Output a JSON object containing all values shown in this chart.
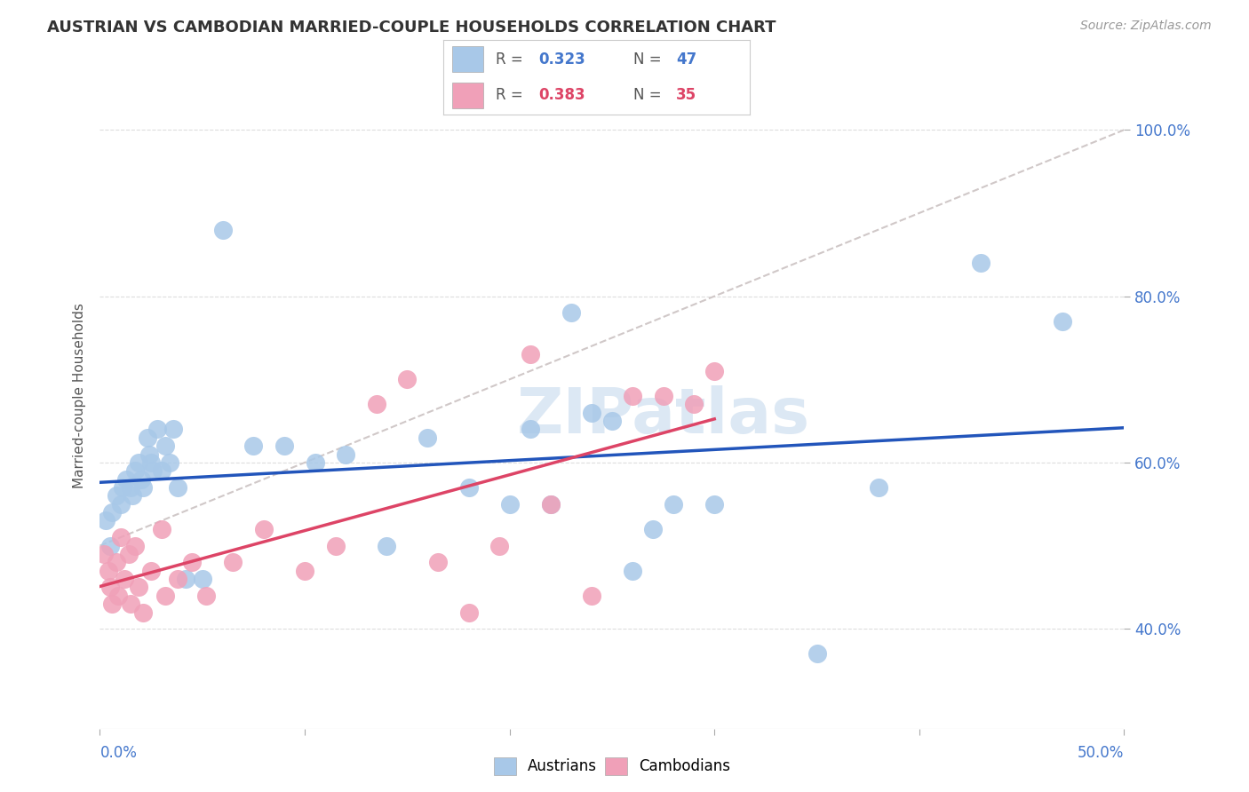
{
  "title": "AUSTRIAN VS CAMBODIAN MARRIED-COUPLE HOUSEHOLDS CORRELATION CHART",
  "source": "Source: ZipAtlas.com",
  "ylabel": "Married-couple Households",
  "legend_blue_r": "0.323",
  "legend_blue_n": "47",
  "legend_pink_r": "0.383",
  "legend_pink_n": "35",
  "legend_label_blue": "Austrians",
  "legend_label_pink": "Cambodians",
  "blue_dot_color": "#a8c8e8",
  "pink_dot_color": "#f0a0b8",
  "trend_blue_color": "#2255bb",
  "trend_pink_color": "#dd4466",
  "ref_line_color": "#d0c8c8",
  "watermark": "ZIPatlas",
  "watermark_color": "#dce8f4",
  "xlim": [
    0,
    50
  ],
  "ylim": [
    28,
    108
  ],
  "yticks": [
    40,
    60,
    80,
    100
  ],
  "xtick_positions": [
    0,
    10,
    20,
    30,
    40,
    50
  ],
  "aus_x": [
    0.3,
    0.5,
    0.6,
    0.8,
    1.0,
    1.1,
    1.3,
    1.5,
    1.6,
    1.7,
    1.9,
    2.0,
    2.1,
    2.3,
    2.4,
    2.5,
    2.6,
    2.8,
    3.0,
    3.2,
    3.4,
    3.6,
    3.8,
    4.2,
    5.0,
    6.0,
    7.5,
    9.0,
    10.5,
    12.0,
    14.0,
    16.0,
    18.0,
    20.0,
    21.0,
    22.0,
    23.0,
    24.0,
    25.0,
    26.0,
    27.0,
    28.0,
    30.0,
    35.0,
    38.0,
    43.0,
    47.0
  ],
  "aus_y": [
    53,
    50,
    54,
    56,
    55,
    57,
    58,
    57,
    56,
    59,
    60,
    58,
    57,
    63,
    61,
    60,
    59,
    64,
    59,
    62,
    60,
    64,
    57,
    46,
    46,
    88,
    62,
    62,
    60,
    61,
    50,
    63,
    57,
    55,
    64,
    55,
    78,
    66,
    65,
    47,
    52,
    55,
    55,
    37,
    57,
    84,
    77
  ],
  "cam_x": [
    0.2,
    0.4,
    0.5,
    0.6,
    0.8,
    0.9,
    1.0,
    1.2,
    1.4,
    1.5,
    1.7,
    1.9,
    2.1,
    2.5,
    3.0,
    3.2,
    3.8,
    4.5,
    5.2,
    6.5,
    8.0,
    10.0,
    11.5,
    13.5,
    15.0,
    16.5,
    18.0,
    19.5,
    21.0,
    22.0,
    24.0,
    26.0,
    27.5,
    29.0,
    30.0
  ],
  "cam_y": [
    49,
    47,
    45,
    43,
    48,
    44,
    51,
    46,
    49,
    43,
    50,
    45,
    42,
    47,
    52,
    44,
    46,
    48,
    44,
    48,
    52,
    47,
    50,
    67,
    70,
    48,
    42,
    50,
    73,
    55,
    44,
    68,
    68,
    67,
    71
  ]
}
